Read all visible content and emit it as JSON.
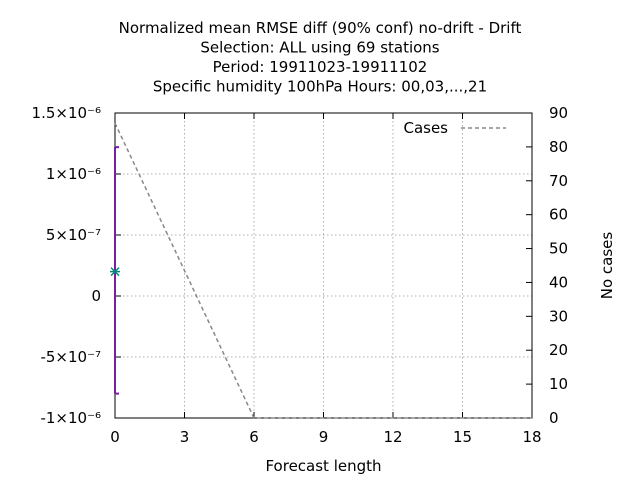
{
  "chart_data": {
    "type": "line",
    "title_lines": [
      "Normalized mean RMSE diff (90% conf) no-drift - Drift",
      "Selection: ALL using    69 stations",
      "Period: 19911023-19911102",
      "Specific humidity 100hPa   Hours:  00,03,...,21"
    ],
    "xlabel": "Forecast length",
    "ylabel": "",
    "y2label": "No cases",
    "xlim": [
      0,
      18
    ],
    "ylim": [
      -1e-06,
      1.5e-06
    ],
    "y2lim": [
      0,
      90
    ],
    "x_ticks": [
      {
        "v": 0,
        "label": "0"
      },
      {
        "v": 3,
        "label": "3"
      },
      {
        "v": 6,
        "label": "6"
      },
      {
        "v": 9,
        "label": "9"
      },
      {
        "v": 12,
        "label": "12"
      },
      {
        "v": 15,
        "label": "15"
      },
      {
        "v": 18,
        "label": "18"
      }
    ],
    "y_ticks": [
      {
        "v": 1.5e-06,
        "label": "1.5×10⁻⁶"
      },
      {
        "v": 1e-06,
        "label": "1×10⁻⁶"
      },
      {
        "v": 5e-07,
        "label": "5×10⁻⁷"
      },
      {
        "v": 0,
        "label": "0"
      },
      {
        "v": -5e-07,
        "label": "-5×10⁻⁷"
      },
      {
        "v": -1e-06,
        "label": "-1×10⁻⁶"
      }
    ],
    "y2_ticks": [
      {
        "v": 90,
        "label": "90"
      },
      {
        "v": 80,
        "label": "80"
      },
      {
        "v": 70,
        "label": "70"
      },
      {
        "v": 60,
        "label": "60"
      },
      {
        "v": 50,
        "label": "50"
      },
      {
        "v": 40,
        "label": "40"
      },
      {
        "v": 30,
        "label": "30"
      },
      {
        "v": 20,
        "label": "20"
      },
      {
        "v": 10,
        "label": "10"
      },
      {
        "v": 0,
        "label": "0"
      }
    ],
    "grid": true,
    "legend_position": "top-right",
    "series": [
      {
        "name": "Cases",
        "axis": "y2",
        "style": "dashed",
        "color": "#888888",
        "points": [
          [
            0,
            87
          ],
          [
            6,
            0
          ],
          [
            9,
            0
          ],
          [
            12,
            0
          ],
          [
            15,
            0
          ],
          [
            18,
            0
          ]
        ]
      }
    ],
    "error_bars": [
      {
        "x": 0,
        "low": -8e-07,
        "high": 1.22e-06,
        "value": 2e-07,
        "color": "#7b1fa2",
        "marker_color": "#00897b"
      }
    ]
  }
}
